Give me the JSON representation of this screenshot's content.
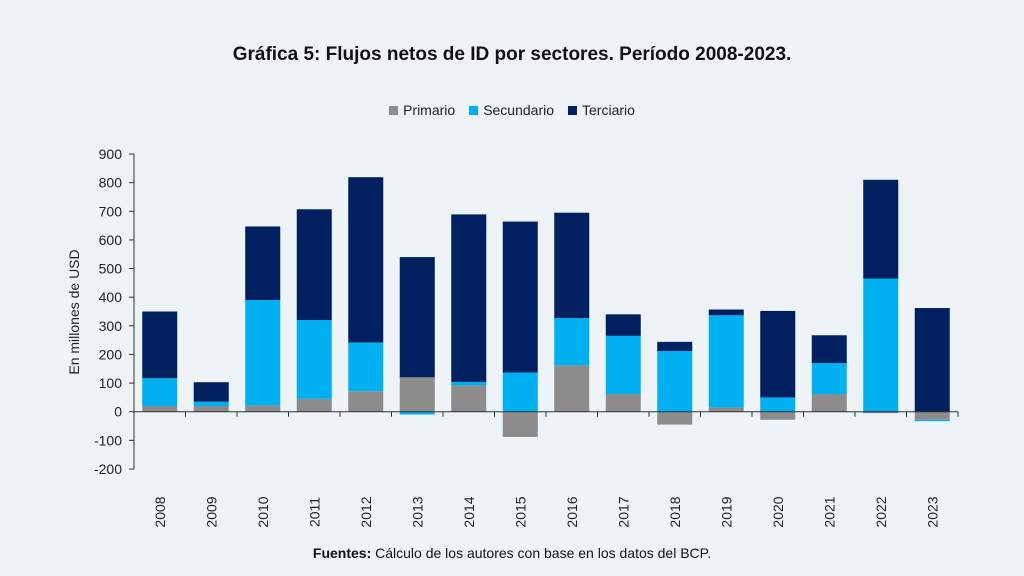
{
  "chart_data": {
    "type": "bar",
    "stacked": true,
    "title": "Gráfica 5: Flujos netos de ID por sectores. Período 2008-2023.",
    "ylabel": "En millones de USD",
    "xlabel": "",
    "ylim": [
      -200,
      900
    ],
    "yticks": [
      900,
      800,
      700,
      600,
      500,
      400,
      300,
      200,
      100,
      0,
      -100,
      -200
    ],
    "ytick_labels": [
      "900",
      "800",
      "700",
      "600",
      "500",
      "400",
      "300",
      "200",
      "100",
      "0",
      "-100",
      "-200"
    ],
    "legend_position": "top-center",
    "grid": false,
    "categories": [
      "2008",
      "2009",
      "2010",
      "2011",
      "2012",
      "2013",
      "2014",
      "2015",
      "2016",
      "2017",
      "2018",
      "2019",
      "2020",
      "2021",
      "2022",
      "2023"
    ],
    "series": [
      {
        "name": "Primario",
        "color": "#8c8c8c",
        "values": [
          20,
          20,
          22,
          45,
          72,
          120,
          92,
          -88,
          162,
          62,
          -45,
          15,
          -28,
          62,
          -5,
          -28
        ]
      },
      {
        "name": "Secundario",
        "color": "#00b0f0",
        "values": [
          97,
          15,
          368,
          275,
          170,
          -10,
          12,
          137,
          165,
          203,
          212,
          322,
          50,
          108,
          465,
          -5
        ]
      },
      {
        "name": "Terciario",
        "color": "#002060",
        "values": [
          233,
          68,
          257,
          387,
          577,
          420,
          585,
          527,
          368,
          75,
          32,
          20,
          302,
          97,
          345,
          362
        ]
      }
    ]
  },
  "source": {
    "label": "Fuentes:",
    "text": " Cálculo de los autores con base en los datos del BCP."
  }
}
